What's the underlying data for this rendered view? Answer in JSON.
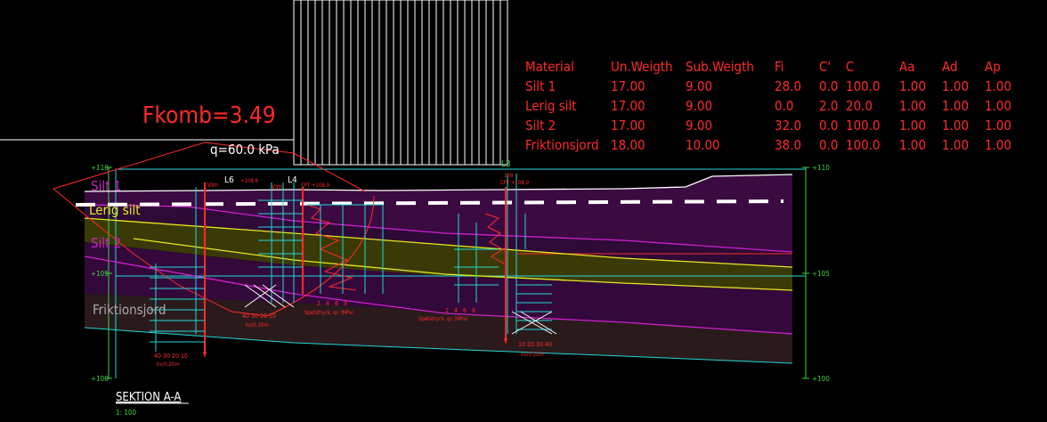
{
  "colors": {
    "background": "#000000",
    "red": "#ff2a2a",
    "green": "#35d83a",
    "cyan": "#20d8d8",
    "white": "#ffffff",
    "magenta": "#d020d0",
    "yellow": "#e8e820",
    "purple_fill": "#3a0a40",
    "olive_fill": "#3a3a06",
    "brown_fill": "#2a1a1c"
  },
  "factor_label": "Fkomb=3.49",
  "load_label": "q=60.0 kPa",
  "material_table": {
    "headers": [
      "Material",
      "Un.Weigth",
      "Sub.Weigth",
      "Fi",
      "C'",
      "C",
      "Aa",
      "Ad",
      "Ap"
    ],
    "rows": [
      [
        "Silt 1",
        "17.00",
        "9.00",
        "28.0",
        "0.0",
        "100.0",
        "1.00",
        "1.00",
        "1.00"
      ],
      [
        "Lerig silt",
        "17.00",
        "9.00",
        "0.0",
        "2.0",
        "20.0",
        "1.00",
        "1.00",
        "1.00"
      ],
      [
        "Silt 2",
        "17.00",
        "9.00",
        "32.0",
        "0.0",
        "100.0",
        "1.00",
        "1.00",
        "1.00"
      ],
      [
        "Friktionsjord",
        "18.00",
        "10.00",
        "38.0",
        "0.0",
        "100.0",
        "1.00",
        "1.00",
        "1.00"
      ]
    ]
  },
  "layers": {
    "silt1": "Silt 1",
    "lerig_silt": "Lerig silt",
    "silt2": "Silt 2",
    "friktionsjord": "Friktionsjord"
  },
  "elevations": {
    "left_110": "+110",
    "left_105": "+105",
    "left_100": "+100",
    "right_110": "+110",
    "right_105": "+105",
    "right_100": "+100"
  },
  "boreholes": {
    "l6_label": "L6",
    "l6_level": "+108.6",
    "l4_label": "L4",
    "l4_cpt": "CPT +108.9",
    "l3_label": "L3",
    "l3_level": "108",
    "l3_cpt": "CPT +108.9",
    "vim": "Vim",
    "vim2": "Vim"
  },
  "cpt_labels": {
    "left_scale": "2   4   6   8",
    "left_caption": "Spetstryck, qc (MPa)",
    "right_scale": "2   4   6   8",
    "right_caption": "Spetstryck, qc (MPa)"
  },
  "sounding_labels": {
    "l6_scale": "40 30 20 10",
    "l6_caption": "hv/0.20m",
    "l4_scale": "40 30 20 10",
    "l4_caption": "hv/0.20m",
    "l3_scale": "10 20 30 40",
    "l3_caption": "hv/0.20m"
  },
  "section_title": "SEKTION A-A",
  "section_scale": "1: 100"
}
